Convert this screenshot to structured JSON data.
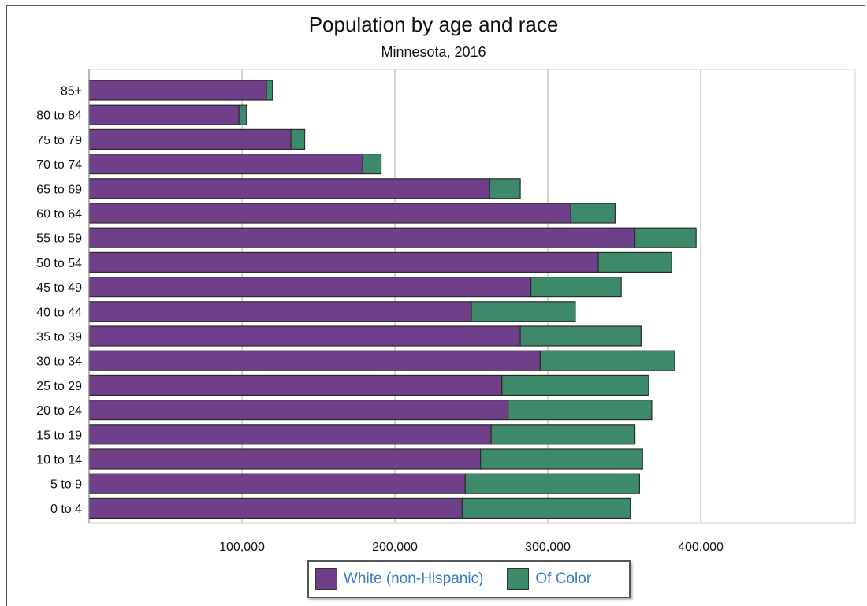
{
  "chart_data": {
    "type": "bar",
    "orientation": "horizontal",
    "stacked": true,
    "title": "Population by age and race",
    "subtitle": "Minnesota, 2016",
    "categories": [
      "85+",
      "80 to 84",
      "75 to 79",
      "70 to 74",
      "65 to 69",
      "60 to 64",
      "55 to 59",
      "50 to 54",
      "45 to 49",
      "40 to 44",
      "35 to 39",
      "30 to 34",
      "25 to 29",
      "20 to 24",
      "15 to 19",
      "10 to 14",
      "5 to 9",
      "0 to 4"
    ],
    "series": [
      {
        "name": "White (non-Hispanic)",
        "color": "#6f3f8a",
        "values": [
          116000,
          98000,
          132000,
          179000,
          262000,
          315000,
          357000,
          333000,
          289000,
          250000,
          282000,
          295000,
          270000,
          274000,
          263000,
          256000,
          246000,
          244000
        ]
      },
      {
        "name": "Of Color",
        "color": "#3d8a6b",
        "values": [
          4000,
          5000,
          9000,
          12000,
          20000,
          29000,
          40000,
          48000,
          59000,
          68000,
          79000,
          88000,
          96000,
          94000,
          94000,
          106000,
          114000,
          110000
        ]
      }
    ],
    "xlim": [
      0,
      500000
    ],
    "xticks": [
      100000,
      200000,
      300000,
      400000
    ],
    "xtick_labels": [
      "100,000",
      "200,000",
      "300,000",
      "400,000"
    ],
    "grid": true,
    "legend_position": "bottom"
  }
}
